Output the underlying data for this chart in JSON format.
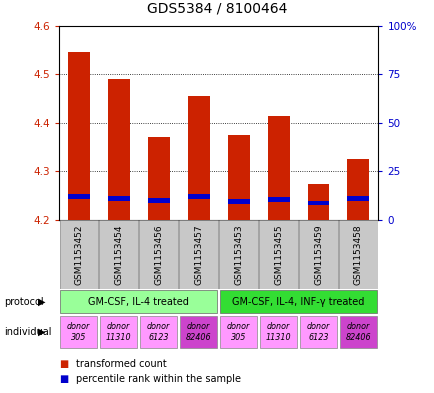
{
  "title": "GDS5384 / 8100464",
  "samples": [
    "GSM1153452",
    "GSM1153454",
    "GSM1153456",
    "GSM1153457",
    "GSM1153453",
    "GSM1153455",
    "GSM1153459",
    "GSM1153458"
  ],
  "red_values": [
    4.545,
    4.49,
    4.37,
    4.455,
    4.375,
    4.415,
    4.275,
    4.325
  ],
  "blue_values": [
    4.248,
    4.245,
    4.24,
    4.248,
    4.238,
    4.242,
    4.235,
    4.245
  ],
  "base": 4.2,
  "ylim": [
    4.2,
    4.6
  ],
  "yticks": [
    4.2,
    4.3,
    4.4,
    4.5,
    4.6
  ],
  "y2ticks_vals": [
    4.2,
    4.3,
    4.4,
    4.5,
    4.6
  ],
  "y2ticks_labels": [
    "0",
    "25",
    "50",
    "75",
    "100%"
  ],
  "protocol_labels": [
    "GM-CSF, IL-4 treated",
    "GM-CSF, IL-4, INF-γ treated"
  ],
  "individual_labels": [
    "donor\n305",
    "donor\n11310",
    "donor\n6123",
    "donor\n82406",
    "donor\n305",
    "donor\n11310",
    "donor\n6123",
    "donor\n82406"
  ],
  "individual_colors": [
    "#ff99ff",
    "#ff99ff",
    "#ff99ff",
    "#cc44cc",
    "#ff99ff",
    "#ff99ff",
    "#ff99ff",
    "#cc44cc"
  ],
  "protocol_colors": [
    "#99ff99",
    "#33dd33"
  ],
  "sample_bg_color": "#c8c8c8",
  "bar_color_red": "#cc2200",
  "bar_color_blue": "#0000cc",
  "left_label_color": "#cc2200",
  "right_label_color": "#0000cc",
  "legend_texts": [
    "transformed count",
    "percentile rank within the sample"
  ]
}
